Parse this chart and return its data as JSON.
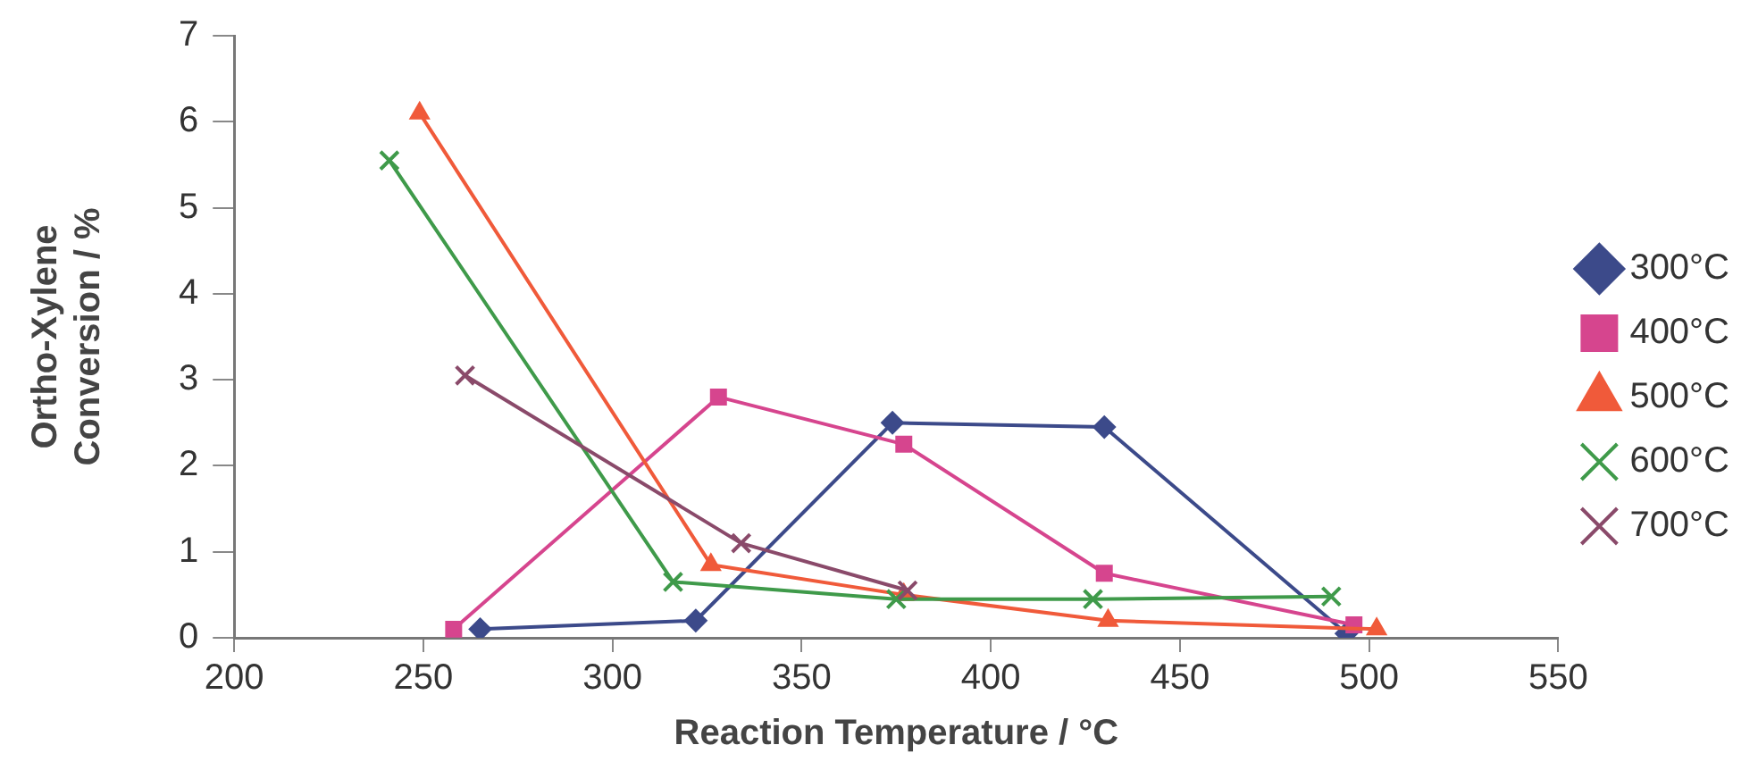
{
  "chart_data": {
    "type": "line",
    "xlabel": "Reaction Temperature / °C",
    "ylabel": "Ortho-Xylene\nConversion / %",
    "xlim": [
      200,
      550
    ],
    "xticks": [
      200,
      250,
      300,
      350,
      400,
      450,
      500,
      550
    ],
    "ylim": [
      0,
      7
    ],
    "yticks": [
      0,
      1,
      2,
      3,
      4,
      5,
      6,
      7
    ],
    "grid": false,
    "legend": "right",
    "line_style": "solid",
    "series": [
      {
        "name": "300°C",
        "color": "#3c4a8a",
        "marker": "diamond",
        "x": [
          265,
          322,
          374,
          430,
          494
        ],
        "values": [
          0.1,
          0.2,
          2.5,
          2.45,
          0.05
        ]
      },
      {
        "name": "400°C",
        "color": "#d6458e",
        "marker": "square",
        "x": [
          258,
          328,
          377,
          430,
          496
        ],
        "values": [
          0.1,
          2.8,
          2.25,
          0.75,
          0.15
        ]
      },
      {
        "name": "500°C",
        "color": "#f05a3a",
        "marker": "triangle",
        "x": [
          249,
          326,
          377,
          431,
          502
        ],
        "values": [
          6.1,
          0.85,
          0.5,
          0.2,
          0.1
        ]
      },
      {
        "name": "600°C",
        "color": "#3f9a4a",
        "marker": "cross",
        "x": [
          241,
          316,
          375,
          427,
          490
        ],
        "values": [
          5.55,
          0.65,
          0.45,
          0.45,
          0.48
        ]
      },
      {
        "name": "700°C",
        "color": "#8a4a6a",
        "marker": "cross",
        "x": [
          261,
          334,
          378
        ],
        "values": [
          3.05,
          1.1,
          0.55
        ]
      }
    ]
  }
}
